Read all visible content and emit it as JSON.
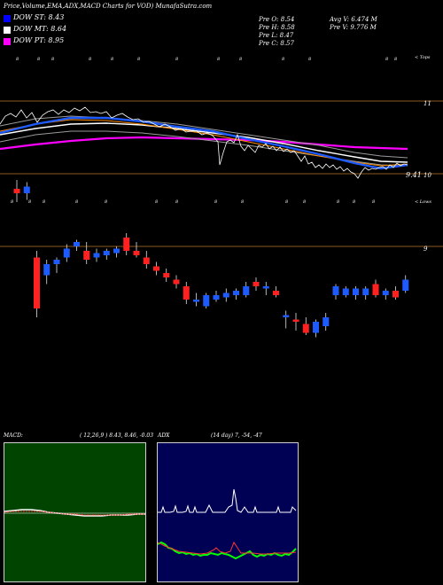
{
  "header": {
    "title": "Price,Volume,EMA,ADX,MACD Charts for VOD) MunafaSutra.com",
    "prev_open": "Pre   O: 8.54",
    "prev_high": "Pre   H: 8.58",
    "prev_low": "Pre   L: 8.47",
    "prev_close": "Pre   C: 8.57",
    "avg_volume": "Avg V: 6.474   M",
    "prev_volume": "Pre   V: 9.776   M"
  },
  "legend": [
    {
      "label": "DOW ST: 8.43",
      "color": "#0000ff"
    },
    {
      "label": "DOW MT: 8.64",
      "color": "#ffffff"
    },
    {
      "label": "DOW PT: 8.95",
      "color": "#ff00ff"
    }
  ],
  "top_panel": {
    "tag_top": "< Tops",
    "tag_bottom": "< Lows",
    "price_label": "9.41",
    "level_labels": [
      "11",
      "10"
    ]
  },
  "candle_panel": {
    "level_label": "9"
  },
  "macd": {
    "label": "MACD:",
    "values": "( 12,26,9 ) 8.43, 8.46, -0.03",
    "bg": "#004400"
  },
  "adx": {
    "label": "ADX",
    "values": "(14 day) 7, -54, -47",
    "bg": "#000055"
  },
  "chart_data": {
    "type": "candlestick",
    "candles": [
      {
        "o": 9.26,
        "h": 9.3,
        "l": 9.2,
        "c": 9.24
      },
      {
        "o": 9.24,
        "h": 9.29,
        "l": 9.21,
        "c": 9.27
      },
      {
        "o": 8.95,
        "h": 8.98,
        "l": 8.68,
        "c": 8.72
      },
      {
        "o": 8.87,
        "h": 8.94,
        "l": 8.83,
        "c": 8.92
      },
      {
        "o": 8.92,
        "h": 8.95,
        "l": 8.88,
        "c": 8.94
      },
      {
        "o": 8.95,
        "h": 9.01,
        "l": 8.93,
        "c": 8.99
      },
      {
        "o": 9.0,
        "h": 9.03,
        "l": 8.98,
        "c": 9.02
      },
      {
        "o": 8.98,
        "h": 9.02,
        "l": 8.92,
        "c": 8.94
      },
      {
        "o": 8.95,
        "h": 8.99,
        "l": 8.93,
        "c": 8.97
      },
      {
        "o": 8.96,
        "h": 8.99,
        "l": 8.94,
        "c": 8.98
      },
      {
        "o": 8.97,
        "h": 9.0,
        "l": 8.95,
        "c": 8.99
      },
      {
        "o": 9.04,
        "h": 9.06,
        "l": 8.96,
        "c": 8.98
      },
      {
        "o": 8.98,
        "h": 9.02,
        "l": 8.95,
        "c": 8.96
      },
      {
        "o": 8.95,
        "h": 8.98,
        "l": 8.9,
        "c": 8.92
      },
      {
        "o": 8.91,
        "h": 8.93,
        "l": 8.87,
        "c": 8.89
      },
      {
        "o": 8.88,
        "h": 8.9,
        "l": 8.84,
        "c": 8.86
      },
      {
        "o": 8.85,
        "h": 8.87,
        "l": 8.81,
        "c": 8.83
      },
      {
        "o": 8.82,
        "h": 8.84,
        "l": 8.74,
        "c": 8.76
      },
      {
        "o": 8.75,
        "h": 8.79,
        "l": 8.73,
        "c": 8.76
      },
      {
        "o": 8.73,
        "h": 8.79,
        "l": 8.72,
        "c": 8.78
      },
      {
        "o": 8.76,
        "h": 8.8,
        "l": 8.75,
        "c": 8.78
      },
      {
        "o": 8.77,
        "h": 8.81,
        "l": 8.75,
        "c": 8.79
      },
      {
        "o": 8.78,
        "h": 8.81,
        "l": 8.76,
        "c": 8.8
      },
      {
        "o": 8.78,
        "h": 8.84,
        "l": 8.77,
        "c": 8.82
      },
      {
        "o": 8.84,
        "h": 8.86,
        "l": 8.8,
        "c": 8.82
      },
      {
        "o": 8.81,
        "h": 8.84,
        "l": 8.78,
        "c": 8.82
      },
      {
        "o": 8.8,
        "h": 8.82,
        "l": 8.77,
        "c": 8.78
      },
      {
        "o": 8.68,
        "h": 8.71,
        "l": 8.63,
        "c": 8.69
      },
      {
        "o": 8.67,
        "h": 8.7,
        "l": 8.62,
        "c": 8.66
      },
      {
        "o": 8.65,
        "h": 8.68,
        "l": 8.6,
        "c": 8.61
      },
      {
        "o": 8.61,
        "h": 8.67,
        "l": 8.59,
        "c": 8.66
      },
      {
        "o": 8.64,
        "h": 8.7,
        "l": 8.62,
        "c": 8.68
      },
      {
        "o": 8.78,
        "h": 8.83,
        "l": 8.76,
        "c": 8.82
      },
      {
        "o": 8.78,
        "h": 8.82,
        "l": 8.77,
        "c": 8.81
      },
      {
        "o": 8.78,
        "h": 8.82,
        "l": 8.76,
        "c": 8.81
      },
      {
        "o": 8.78,
        "h": 8.82,
        "l": 8.76,
        "c": 8.81
      },
      {
        "o": 8.83,
        "h": 8.85,
        "l": 8.77,
        "c": 8.78
      },
      {
        "o": 8.78,
        "h": 8.81,
        "l": 8.76,
        "c": 8.8
      },
      {
        "o": 8.8,
        "h": 8.82,
        "l": 8.76,
        "c": 8.77
      },
      {
        "o": 8.8,
        "h": 8.87,
        "l": 8.79,
        "c": 8.85
      }
    ]
  }
}
